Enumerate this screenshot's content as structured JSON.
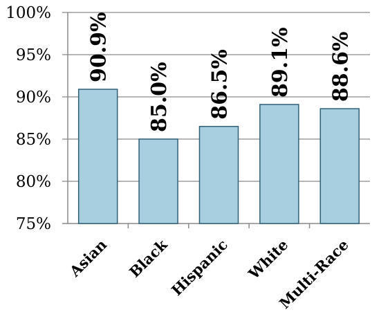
{
  "chart_data": {
    "type": "bar",
    "title": "",
    "xlabel": "",
    "ylabel": "",
    "categories": [
      "Asian",
      "Black",
      "Hispanic",
      "White",
      "Multi-Race"
    ],
    "values": [
      90.9,
      85.0,
      86.5,
      89.1,
      88.6
    ],
    "data_labels": [
      "90.9%",
      "85.0%",
      "86.5%",
      "89.1%",
      "88.6%"
    ],
    "ylim": [
      75,
      100
    ],
    "yticks": [
      75,
      80,
      85,
      90,
      95,
      100
    ],
    "ytick_labels": [
      "75%",
      "80%",
      "85%",
      "90%",
      "95%",
      "100%"
    ],
    "grid": true,
    "legend": "none",
    "colors": {
      "bar_fill": "#a8cfe0",
      "bar_stroke": "#2e5f75",
      "grid": "#8a8a8a"
    }
  }
}
